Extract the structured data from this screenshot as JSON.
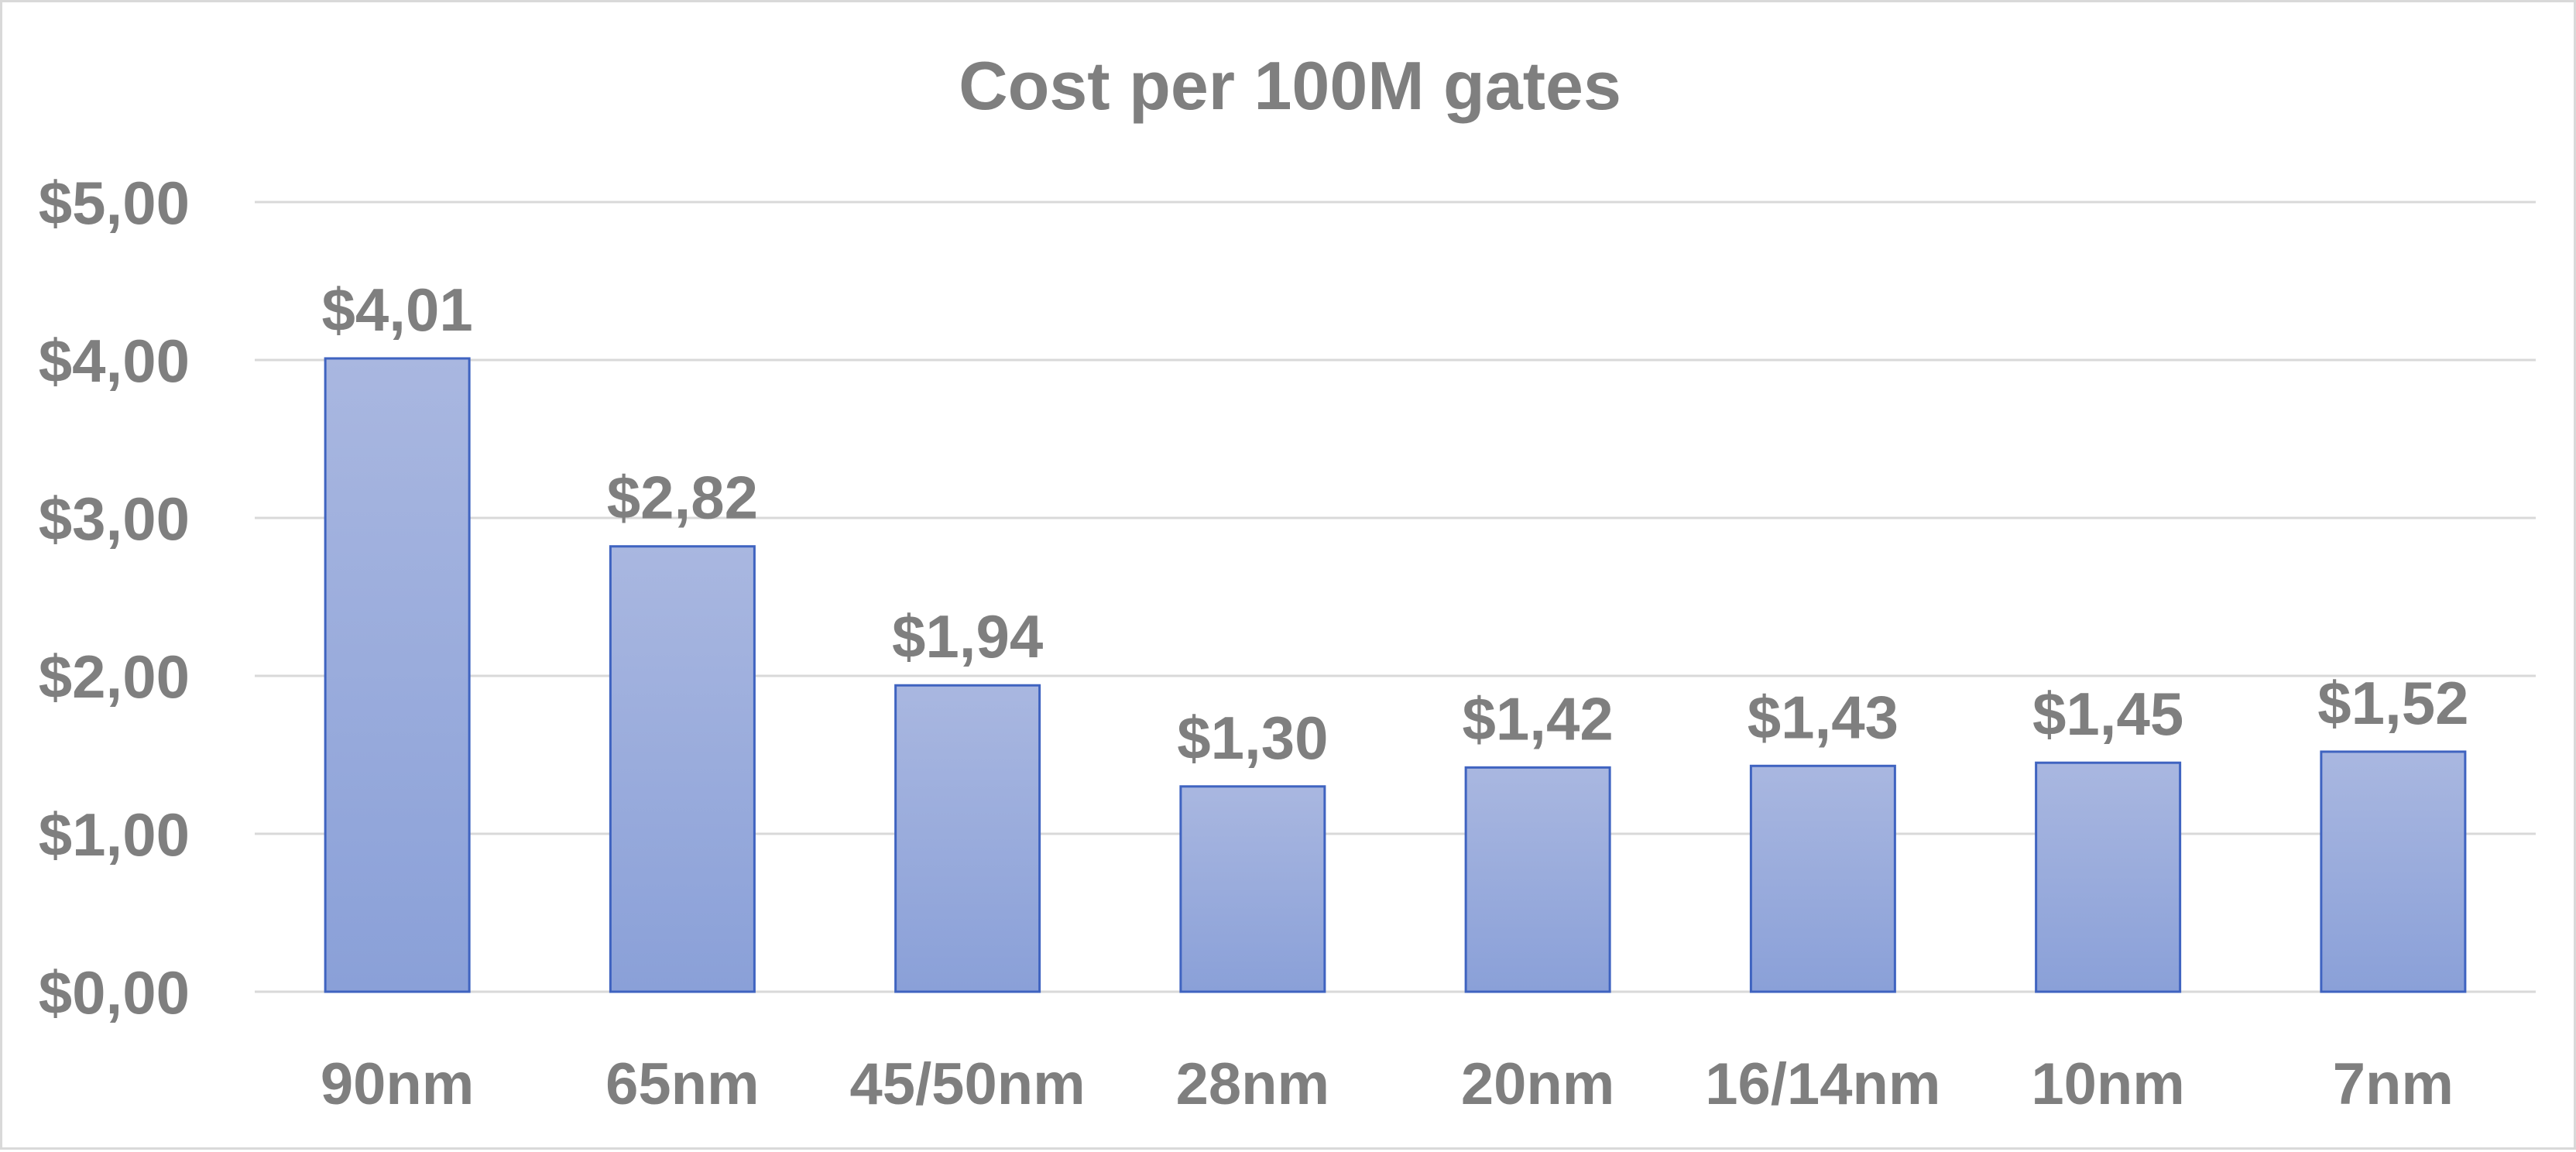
{
  "chart_data": {
    "type": "bar",
    "title": "Cost per 100M gates",
    "xlabel": "",
    "ylabel": "",
    "categories": [
      "90nm",
      "65nm",
      "45/50nm",
      "28nm",
      "20nm",
      "16/14nm",
      "10nm",
      "7nm"
    ],
    "values": [
      4.01,
      2.82,
      1.94,
      1.3,
      1.42,
      1.43,
      1.45,
      1.52
    ],
    "value_labels": [
      "$4,01",
      "$2,82",
      "$1,94",
      "$1,30",
      "$1,42",
      "$1,43",
      "$1,45",
      "$1,52"
    ],
    "ylim": [
      0,
      5
    ],
    "y_ticks": [
      0,
      1,
      2,
      3,
      4,
      5
    ],
    "y_tick_labels": [
      "$0,00",
      "$1,00",
      "$2,00",
      "$3,00",
      "$4,00",
      "$5,00"
    ],
    "grid": true,
    "legend": "none",
    "colors": {
      "bar_fill_top": "#a9b7e0",
      "bar_fill_bottom": "#8aa0d8",
      "bar_stroke": "#3f63c0",
      "text": "#7f7f7f",
      "grid": "#d9d9d9"
    }
  }
}
